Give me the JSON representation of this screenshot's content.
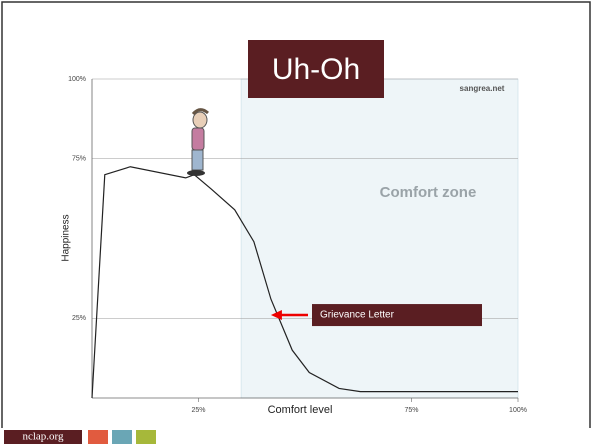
{
  "chart_data": {
    "type": "line",
    "title": "Uh-Oh",
    "source": "sangrea.net",
    "footer": "nclap.org",
    "x_label": "Comfort level",
    "y_label": "Happiness",
    "xlim": [
      0,
      100
    ],
    "ylim": [
      0,
      100
    ],
    "xticks": [
      {
        "value": 25,
        "label": "25%"
      },
      {
        "value": 75,
        "label": "75%"
      },
      {
        "value": 100,
        "label": "100%"
      }
    ],
    "yticks": [
      {
        "value": 25,
        "label": "25%"
      },
      {
        "value": 75,
        "label": "75%"
      },
      {
        "value": 100,
        "label": "100%"
      }
    ],
    "grid": true,
    "shaded_region": {
      "label": "Comfort zone",
      "x": [
        35,
        100
      ],
      "color": "#eef5f8"
    },
    "series": [
      {
        "name": "Happiness",
        "color": "#222222",
        "x": [
          0,
          3,
          9,
          22,
          24,
          28,
          33.5,
          38,
          42,
          47,
          51,
          58,
          63,
          100
        ],
        "values": [
          0,
          70,
          72.5,
          69,
          70,
          65.5,
          59,
          49,
          31,
          15,
          8,
          3,
          2,
          2
        ]
      }
    ],
    "annotations": [
      {
        "text": "Grievance Letter",
        "xy": [
          42,
          26
        ],
        "color": "#5a1e22"
      }
    ]
  }
}
